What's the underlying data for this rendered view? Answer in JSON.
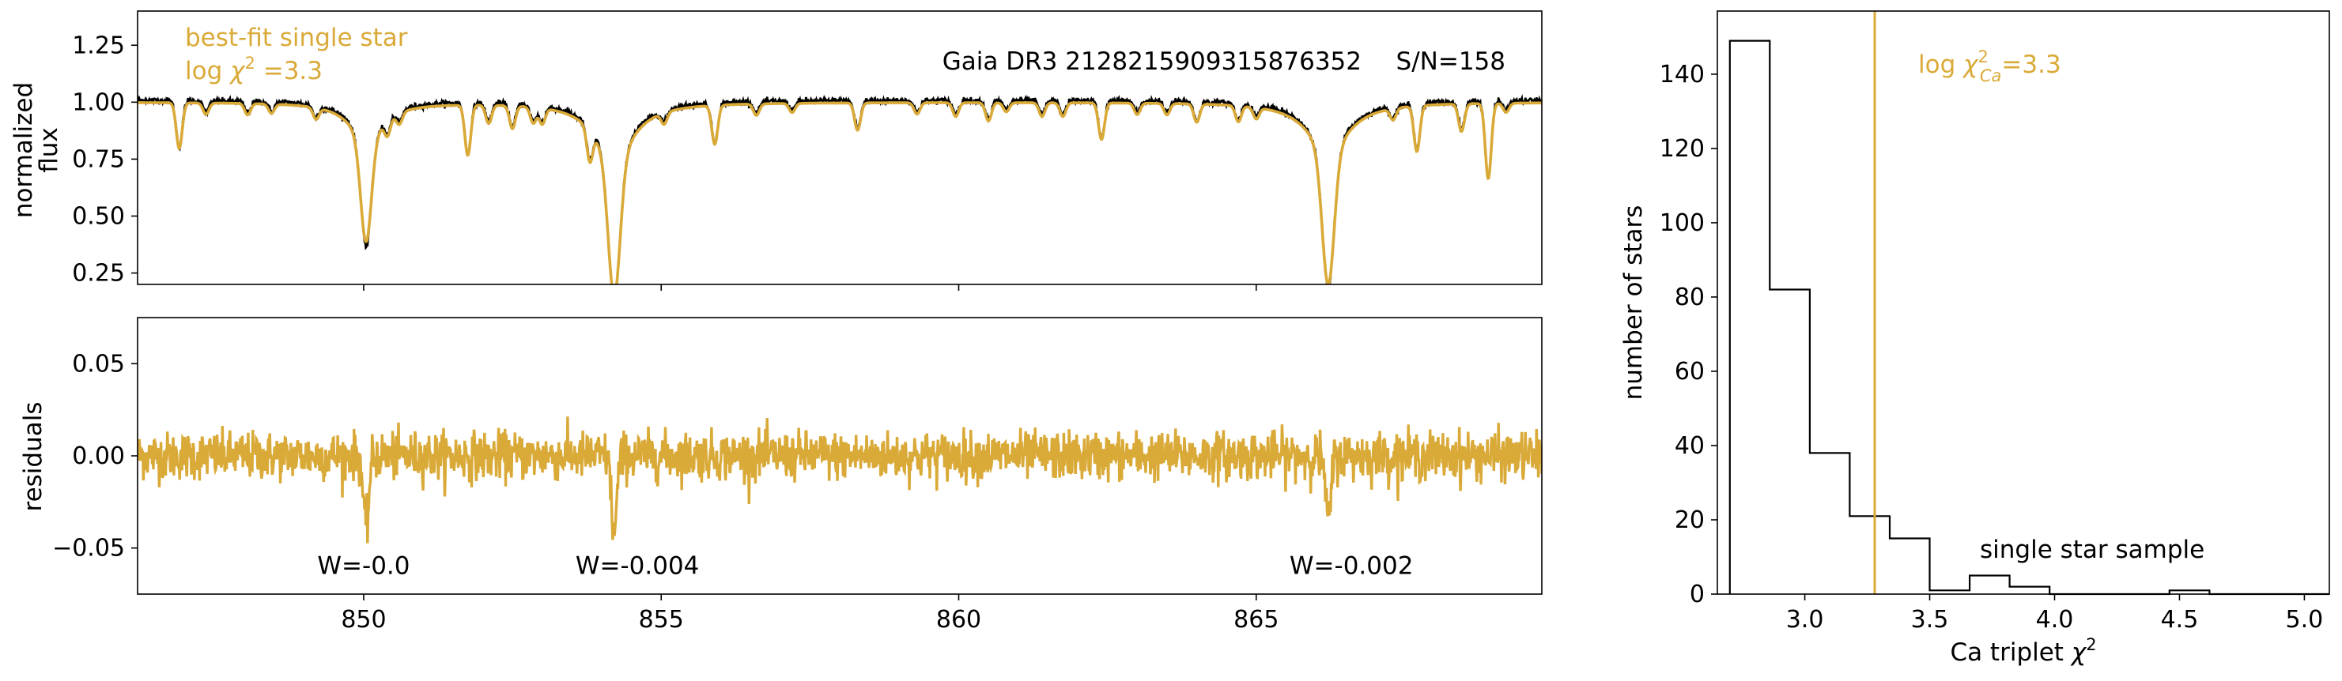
{
  "colors": {
    "model": "#DAAA38",
    "observed": "#000000",
    "histogram": "#000000",
    "threshold": "#DAAA38"
  },
  "chart_data": [
    {
      "name": "spectrum-panel",
      "type": "line",
      "title": "",
      "xlabel": "",
      "ylabel_lines": [
        "normalized",
        "flux"
      ],
      "xlim": [
        846.2,
        869.8
      ],
      "ylim": [
        0.2,
        1.4
      ],
      "yticks": [
        0.25,
        0.5,
        0.75,
        1.0,
        1.25
      ],
      "ytick_labels": [
        "0.25",
        "0.50",
        "0.75",
        "1.00",
        "1.25"
      ],
      "xticks": [
        850,
        855,
        860,
        865
      ],
      "grid": false,
      "annotations": {
        "model_label": "best-fit single star",
        "chi2_prefix": "log ",
        "chi2_symbol": "χ",
        "chi2_sup": "2",
        "chi2_value": " =3.3",
        "star_id": "Gaia DR3 2128215909315876352",
        "snr": "S/N=158"
      },
      "absorption_lines": [
        {
          "center": 846.9,
          "depth": 0.2,
          "width": 0.05
        },
        {
          "center": 847.35,
          "depth": 0.05,
          "width": 0.05
        },
        {
          "center": 848.05,
          "depth": 0.05,
          "width": 0.05
        },
        {
          "center": 848.45,
          "depth": 0.04,
          "width": 0.05
        },
        {
          "center": 849.2,
          "depth": 0.05,
          "width": 0.05
        },
        {
          "center": 850.04,
          "depth": 0.45,
          "width": 0.09
        },
        {
          "center": 850.4,
          "depth": 0.07,
          "width": 0.05
        },
        {
          "center": 850.6,
          "depth": 0.05,
          "width": 0.05
        },
        {
          "center": 851.75,
          "depth": 0.22,
          "width": 0.05
        },
        {
          "center": 852.1,
          "depth": 0.08,
          "width": 0.05
        },
        {
          "center": 852.5,
          "depth": 0.1,
          "width": 0.05
        },
        {
          "center": 852.85,
          "depth": 0.07,
          "width": 0.05
        },
        {
          "center": 853.0,
          "depth": 0.07,
          "width": 0.05
        },
        {
          "center": 853.8,
          "depth": 0.14,
          "width": 0.05
        },
        {
          "center": 854.21,
          "depth": 0.6,
          "width": 0.1
        },
        {
          "center": 855.05,
          "depth": 0.05,
          "width": 0.05
        },
        {
          "center": 855.9,
          "depth": 0.17,
          "width": 0.05
        },
        {
          "center": 856.6,
          "depth": 0.05,
          "width": 0.05
        },
        {
          "center": 857.2,
          "depth": 0.04,
          "width": 0.05
        },
        {
          "center": 858.3,
          "depth": 0.12,
          "width": 0.05
        },
        {
          "center": 859.3,
          "depth": 0.05,
          "width": 0.05
        },
        {
          "center": 859.95,
          "depth": 0.06,
          "width": 0.05
        },
        {
          "center": 860.5,
          "depth": 0.08,
          "width": 0.05
        },
        {
          "center": 860.8,
          "depth": 0.04,
          "width": 0.05
        },
        {
          "center": 861.4,
          "depth": 0.06,
          "width": 0.05
        },
        {
          "center": 861.75,
          "depth": 0.06,
          "width": 0.05
        },
        {
          "center": 862.4,
          "depth": 0.16,
          "width": 0.05
        },
        {
          "center": 863.0,
          "depth": 0.05,
          "width": 0.05
        },
        {
          "center": 863.5,
          "depth": 0.05,
          "width": 0.05
        },
        {
          "center": 864.0,
          "depth": 0.08,
          "width": 0.05
        },
        {
          "center": 864.7,
          "depth": 0.07,
          "width": 0.05
        },
        {
          "center": 865.0,
          "depth": 0.05,
          "width": 0.05
        },
        {
          "center": 866.21,
          "depth": 0.58,
          "width": 0.1
        },
        {
          "center": 867.3,
          "depth": 0.05,
          "width": 0.05
        },
        {
          "center": 867.7,
          "depth": 0.2,
          "width": 0.05
        },
        {
          "center": 868.45,
          "depth": 0.12,
          "width": 0.05
        },
        {
          "center": 868.9,
          "depth": 0.33,
          "width": 0.05
        },
        {
          "center": 869.2,
          "depth": 0.04,
          "width": 0.05
        }
      ],
      "wings": [
        {
          "center": 850.04,
          "depth": 0.16,
          "width": 0.35
        },
        {
          "center": 854.21,
          "depth": 0.25,
          "width": 0.4
        },
        {
          "center": 866.21,
          "depth": 0.22,
          "width": 0.42
        }
      ]
    },
    {
      "name": "residuals-panel",
      "type": "line",
      "title": "",
      "xlabel": "",
      "ylabel": "residuals",
      "xlim": [
        846.2,
        869.8
      ],
      "ylim": [
        -0.075,
        0.075
      ],
      "yticks": [
        -0.05,
        0.0,
        0.05
      ],
      "ytick_labels": [
        "−0.05",
        "0.00",
        "0.05"
      ],
      "xticks": [
        850,
        855,
        860,
        865
      ],
      "xtick_labels": [
        "850",
        "855",
        "860",
        "865"
      ],
      "grid": false,
      "noise_sigma": 0.0065,
      "dips": [
        {
          "center": 850.04,
          "depth": -0.04
        },
        {
          "center": 854.21,
          "depth": -0.042
        },
        {
          "center": 866.21,
          "depth": -0.035
        }
      ],
      "equivalent_widths": [
        {
          "label": "W=-0.0",
          "x": 850.0
        },
        {
          "label": "W=-0.004",
          "x": 854.6
        },
        {
          "label": "W=-0.002",
          "x": 866.6
        }
      ]
    },
    {
      "name": "histogram-panel",
      "type": "bar",
      "title": "",
      "xlabel_prefix": "Ca triplet ",
      "xlabel_symbol": "χ",
      "xlabel_sup": "2",
      "ylabel": "number of stars",
      "xlim": [
        2.65,
        5.1
      ],
      "ylim": [
        0,
        157
      ],
      "xticks": [
        3.0,
        3.5,
        4.0,
        4.5,
        5.0
      ],
      "xtick_labels": [
        "3.0",
        "3.5",
        "4.0",
        "4.5",
        "5.0"
      ],
      "yticks": [
        0,
        20,
        40,
        60,
        80,
        100,
        120,
        140
      ],
      "ytick_labels": [
        "0",
        "20",
        "40",
        "60",
        "80",
        "100",
        "120",
        "140"
      ],
      "bin_edges": [
        2.7,
        2.86,
        3.02,
        3.18,
        3.34,
        3.5,
        3.66,
        3.82,
        3.98,
        4.14,
        4.3,
        4.46,
        4.62,
        4.78,
        4.94,
        5.1
      ],
      "counts": [
        149,
        82,
        38,
        21,
        15,
        1,
        5,
        2,
        0,
        0,
        0,
        1,
        0,
        0,
        0
      ],
      "threshold": 3.28,
      "threshold_label_prefix": "log ",
      "threshold_label_symbol": "χ",
      "threshold_label_sup": "2",
      "threshold_label_sub": "Ca",
      "threshold_label_value": "=3.3",
      "sample_label": "single star sample",
      "grid": false
    }
  ]
}
